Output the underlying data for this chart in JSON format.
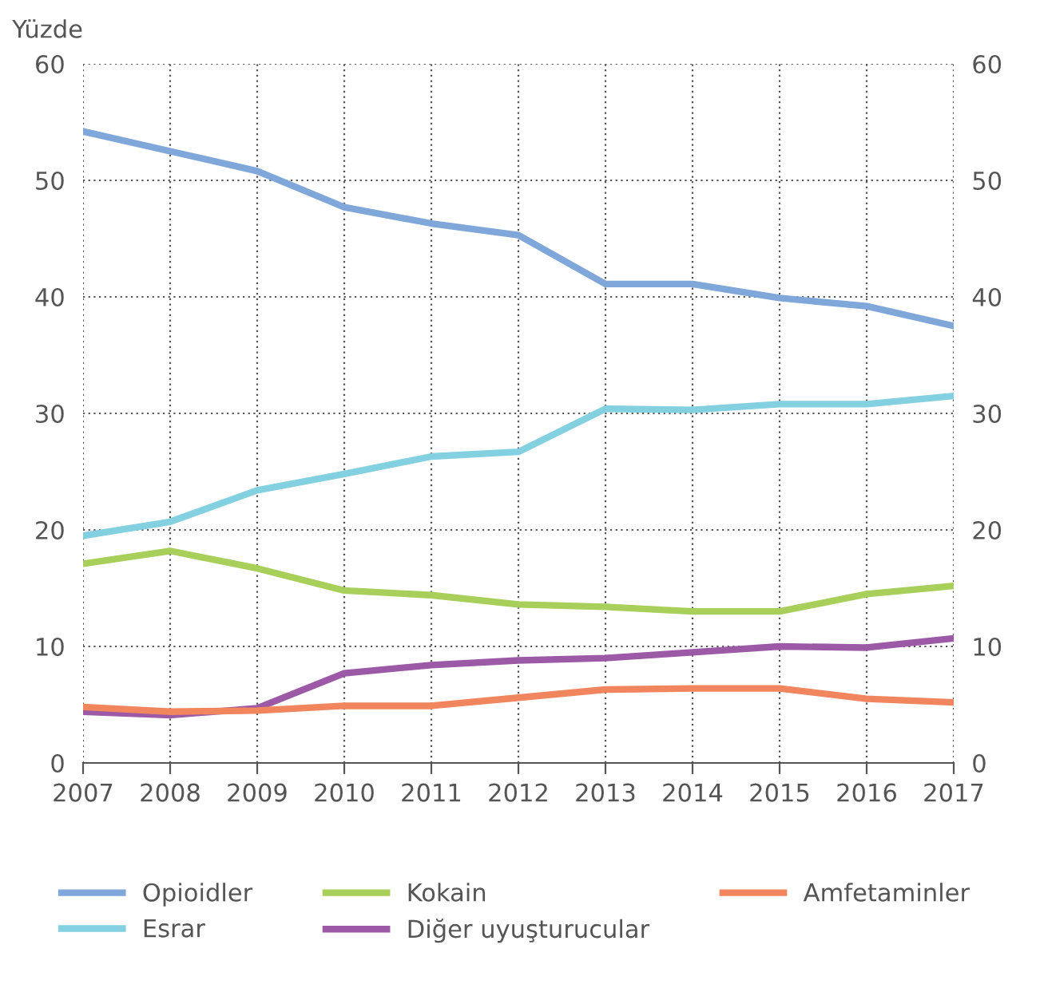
{
  "chart_data": {
    "type": "line",
    "ylabel": "Yüzde",
    "x": [
      2007,
      2008,
      2009,
      2010,
      2011,
      2012,
      2013,
      2014,
      2015,
      2016,
      2017
    ],
    "xlim": [
      2007,
      2017
    ],
    "xticks": [
      2007,
      2008,
      2009,
      2010,
      2011,
      2012,
      2013,
      2014,
      2015,
      2016,
      2017
    ],
    "ylim": [
      0,
      60
    ],
    "yticks": [
      0,
      10,
      20,
      30,
      40,
      50,
      60
    ],
    "y2lim": [
      0,
      60
    ],
    "y2ticks": [
      0,
      10,
      20,
      30,
      40,
      50,
      60
    ],
    "grid": true,
    "legend": "bottom",
    "marker": "none",
    "line_style": "solid",
    "series": [
      {
        "name": "Opioidler",
        "color": "#7fa7d9",
        "values": [
          54.2,
          52.5,
          50.8,
          47.7,
          46.3,
          45.3,
          41.1,
          41.1,
          39.9,
          39.2,
          37.5
        ]
      },
      {
        "name": "Esrar",
        "color": "#82d0e0",
        "values": [
          19.5,
          20.7,
          23.4,
          24.8,
          26.3,
          26.7,
          30.4,
          30.3,
          30.8,
          30.8,
          31.5
        ]
      },
      {
        "name": "Kokain",
        "color": "#a8cf5a",
        "values": [
          17.1,
          18.2,
          16.7,
          14.8,
          14.4,
          13.6,
          13.4,
          13.0,
          13.0,
          14.5,
          15.2
        ]
      },
      {
        "name": "Diğer uyuşturucular",
        "color": "#9b59a6",
        "values": [
          4.4,
          4.1,
          4.7,
          7.7,
          8.4,
          8.8,
          9.0,
          9.5,
          10.0,
          9.9,
          10.7
        ]
      },
      {
        "name": "Amfetaminler",
        "color": "#f0855e",
        "values": [
          4.8,
          4.4,
          4.5,
          4.9,
          4.9,
          5.6,
          6.3,
          6.4,
          6.4,
          5.5,
          5.2
        ]
      }
    ]
  }
}
